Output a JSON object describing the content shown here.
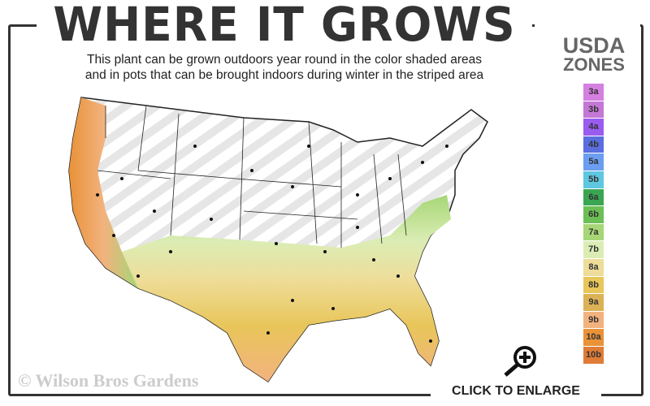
{
  "header": {
    "title": "WHERE IT GROWS",
    "subtitle_line1": "This plant can be grown outdoors year round in the color shaded areas",
    "subtitle_line2": "and in pots that can be brought indoors during winter in the striped area"
  },
  "legend": {
    "title_line1": "USDA",
    "title_line2": "ZONES",
    "zones": [
      {
        "label": "3a",
        "color": "#d57fe0"
      },
      {
        "label": "3b",
        "color": "#c477d5"
      },
      {
        "label": "4a",
        "color": "#9a5cf0"
      },
      {
        "label": "4b",
        "color": "#5a6ee0"
      },
      {
        "label": "5a",
        "color": "#6b9ef0"
      },
      {
        "label": "5b",
        "color": "#5fc7e0"
      },
      {
        "label": "6a",
        "color": "#3aa652"
      },
      {
        "label": "6b",
        "color": "#6bbf55"
      },
      {
        "label": "7a",
        "color": "#a6d676"
      },
      {
        "label": "7b",
        "color": "#dbedb4"
      },
      {
        "label": "8a",
        "color": "#eedd9a"
      },
      {
        "label": "8b",
        "color": "#e8c65a"
      },
      {
        "label": "9a",
        "color": "#dcb256"
      },
      {
        "label": "9b",
        "color": "#f2b27e"
      },
      {
        "label": "10a",
        "color": "#e99238"
      },
      {
        "label": "10b",
        "color": "#e07c38"
      }
    ]
  },
  "map": {
    "icon": "usa-zone-map"
  },
  "footer": {
    "copyright": "© Wilson Bros Gardens",
    "enlarge_label": "CLICK TO ENLARGE",
    "enlarge_icon": "zoom-in-icon"
  }
}
